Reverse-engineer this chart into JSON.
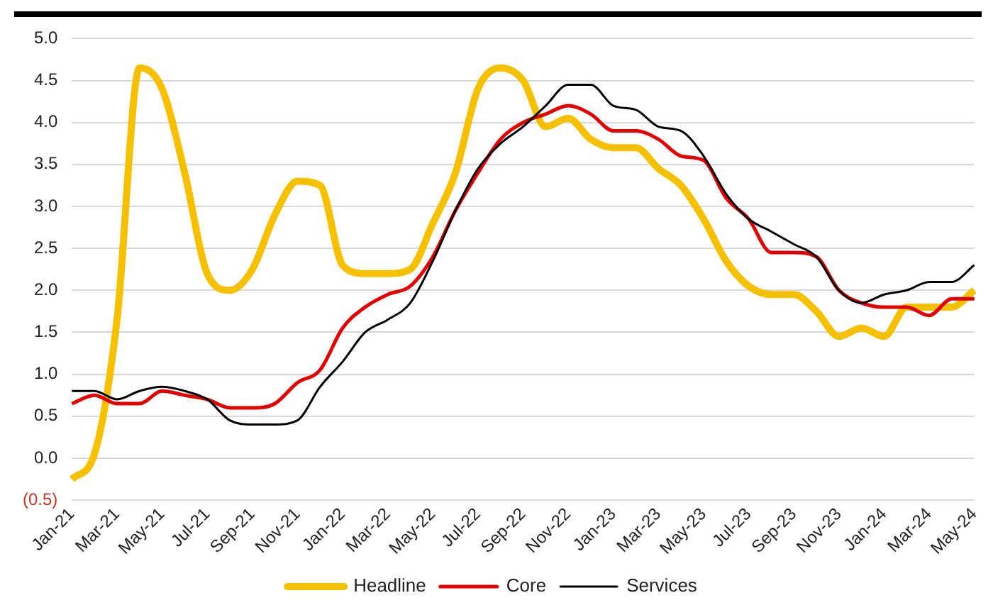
{
  "chart_data": {
    "type": "line",
    "categories": [
      "Jan-21",
      null,
      "Mar-21",
      null,
      "May-21",
      null,
      "Jul-21",
      null,
      "Sep-21",
      null,
      "Nov-21",
      null,
      "Jan-22",
      null,
      "Mar-22",
      null,
      "May-22",
      null,
      "Jul-22",
      null,
      "Sep-22",
      null,
      "Nov-22",
      null,
      "Jan-23",
      null,
      "Mar-23",
      null,
      "May-23",
      null,
      "Jul-23",
      null,
      "Sep-23",
      null,
      "Nov-23",
      null,
      "Jan-24",
      null,
      "Mar-24",
      null,
      "May-24"
    ],
    "series": [
      {
        "name": "Headline",
        "color": "#f5c000",
        "values": [
          -0.25,
          0.05,
          1.65,
          4.65,
          4.4,
          3.4,
          2.2,
          2.0,
          2.25,
          2.9,
          3.3,
          3.25,
          2.3,
          2.2,
          2.2,
          2.25,
          2.8,
          3.4,
          4.4,
          4.65,
          4.5,
          3.95,
          4.05,
          3.8,
          3.7,
          3.7,
          3.45,
          3.25,
          2.85,
          2.35,
          2.05,
          1.95,
          1.95,
          1.75,
          1.45,
          1.55,
          1.45,
          1.8,
          1.8,
          1.8,
          2.0
        ]
      },
      {
        "name": "Core",
        "color": "#e00000",
        "values": [
          0.65,
          0.75,
          0.65,
          0.65,
          0.8,
          0.75,
          0.7,
          0.6,
          0.6,
          0.65,
          0.9,
          1.05,
          1.55,
          1.8,
          1.95,
          2.05,
          2.4,
          2.95,
          3.4,
          3.8,
          4.0,
          4.1,
          4.2,
          4.1,
          3.9,
          3.9,
          3.8,
          3.6,
          3.55,
          3.1,
          2.85,
          2.45,
          2.45,
          2.4,
          2.0,
          1.85,
          1.8,
          1.8,
          1.7,
          1.9,
          1.9
        ]
      },
      {
        "name": "Services",
        "color": "#000000",
        "values": [
          0.8,
          0.8,
          0.7,
          0.8,
          0.85,
          0.8,
          0.7,
          0.45,
          0.4,
          0.4,
          0.45,
          0.85,
          1.15,
          1.5,
          1.65,
          1.85,
          2.35,
          2.95,
          3.45,
          3.75,
          3.95,
          4.2,
          4.45,
          4.45,
          4.2,
          4.15,
          3.95,
          3.9,
          3.6,
          3.15,
          2.85,
          2.7,
          2.55,
          2.4,
          2.0,
          1.85,
          1.95,
          2.0,
          2.1,
          2.1,
          2.3
        ]
      }
    ],
    "ylim": [
      -0.5,
      5.0
    ],
    "yticks": [
      {
        "value": -0.5,
        "label": "(0.5)"
      },
      "0.0",
      0.5,
      "1.0",
      1.5,
      "2.0",
      2.5,
      "3.0",
      3.5,
      "4.0",
      4.5,
      "5.0"
    ],
    "grid": "y",
    "legend": "bottom",
    "marker": "none",
    "line_style": "solid"
  }
}
